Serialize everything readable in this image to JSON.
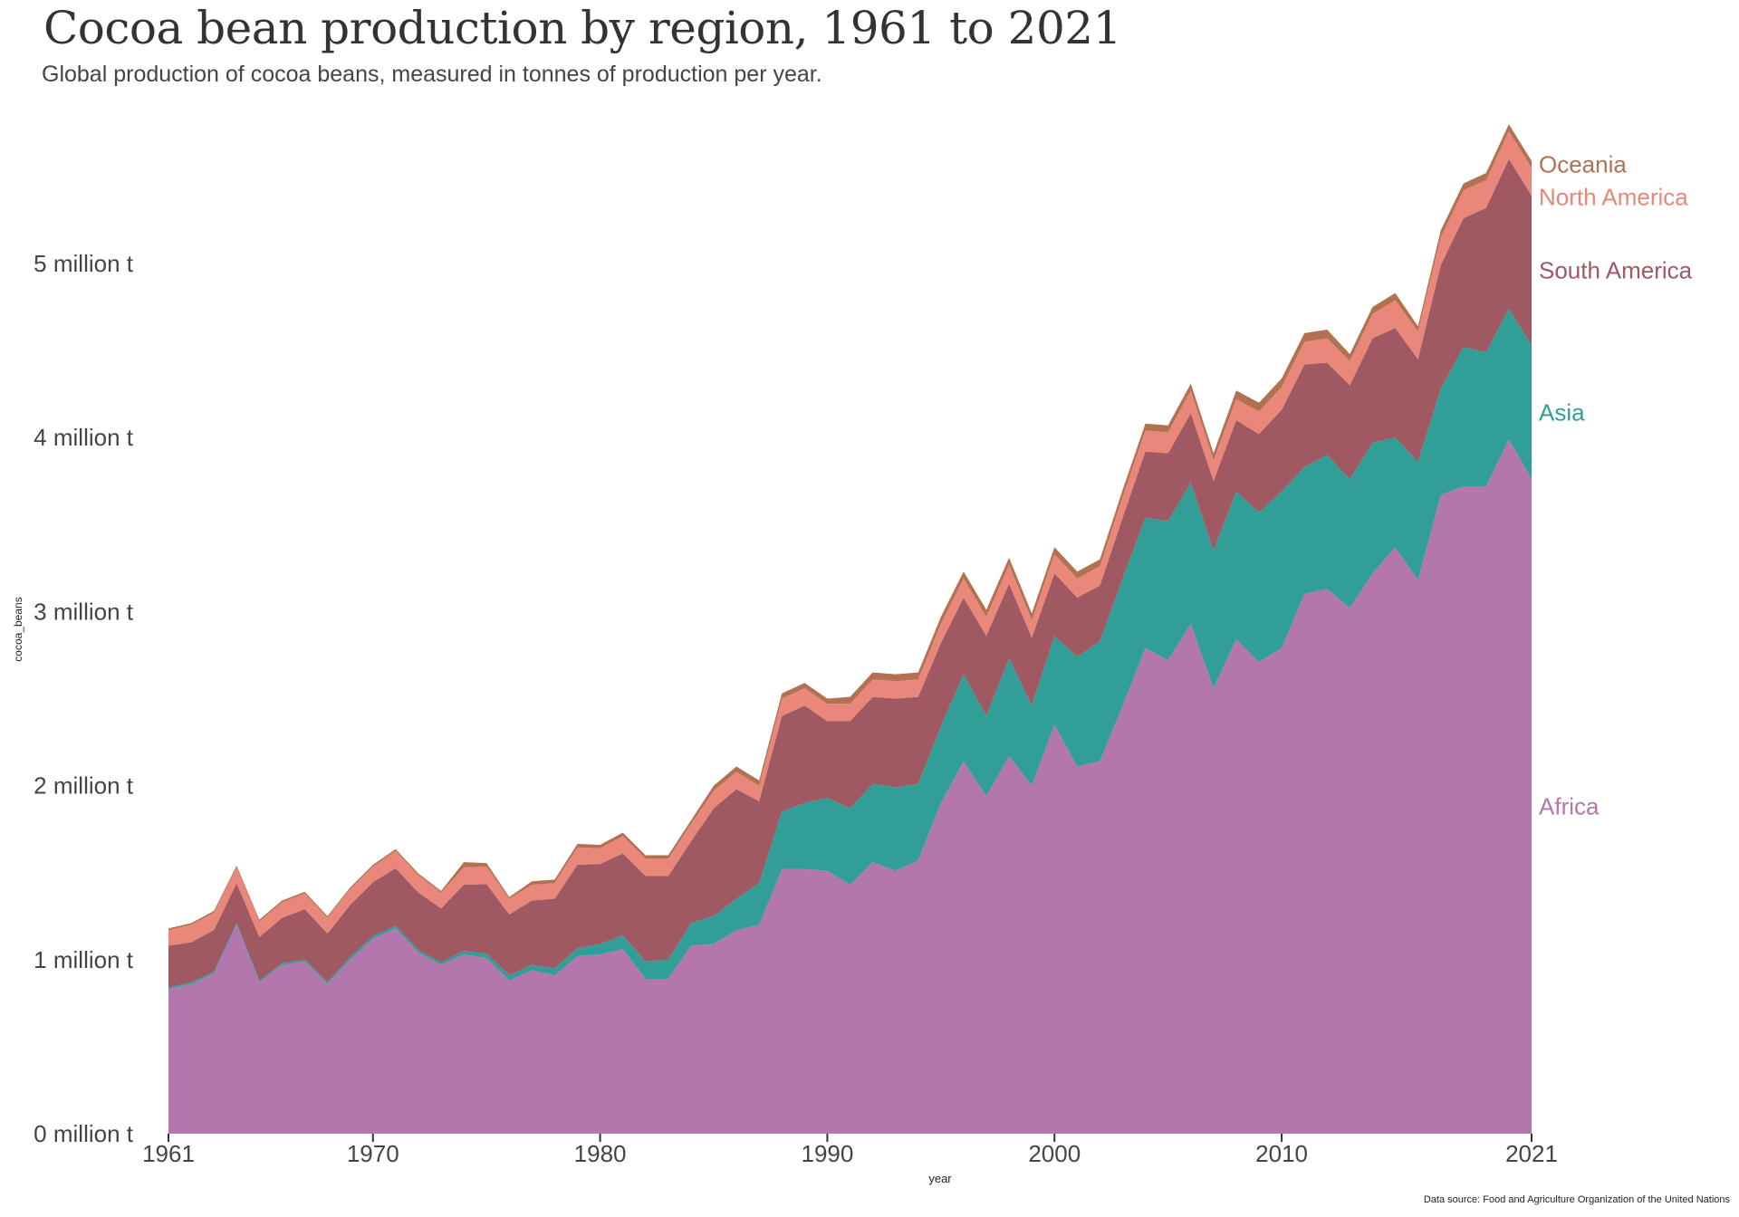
{
  "title": "Cocoa bean production by region, 1961 to 2021",
  "subtitle": "Global production of cocoa beans, measured in tonnes of production per year.",
  "source": "Data source: Food and Agriculture Organization of the United Nations",
  "chart_data": {
    "type": "area",
    "stacked": true,
    "xlabel": "year",
    "ylabel": "cocoa_beans",
    "xlim": [
      1961,
      2021
    ],
    "ylim": [
      0,
      5800000
    ],
    "x_ticks": [
      1961,
      1970,
      1980,
      1990,
      2000,
      2010,
      2021
    ],
    "y_ticks": [
      0,
      1000000,
      2000000,
      3000000,
      4000000,
      5000000
    ],
    "y_tick_labels": [
      "0 million t",
      "1 million t",
      "2 million t",
      "3 million t",
      "4 million t",
      "5 million t"
    ],
    "grid": false,
    "legend": "direct labels at right end",
    "x": [
      1961,
      1962,
      1963,
      1964,
      1965,
      1966,
      1967,
      1968,
      1969,
      1970,
      1971,
      1972,
      1973,
      1974,
      1975,
      1976,
      1977,
      1978,
      1979,
      1980,
      1981,
      1982,
      1983,
      1984,
      1985,
      1986,
      1987,
      1988,
      1989,
      1990,
      1991,
      1992,
      1993,
      1994,
      1995,
      1996,
      1997,
      1998,
      1999,
      2000,
      2001,
      2002,
      2003,
      2004,
      2005,
      2006,
      2007,
      2008,
      2009,
      2010,
      2011,
      2012,
      2013,
      2014,
      2015,
      2016,
      2017,
      2018,
      2019,
      2020,
      2021
    ],
    "series": [
      {
        "name": "Africa",
        "color": "#b377ae",
        "values": [
          830000,
          860000,
          920000,
          1200000,
          870000,
          970000,
          990000,
          860000,
          1000000,
          1120000,
          1180000,
          1040000,
          970000,
          1030000,
          1010000,
          880000,
          940000,
          910000,
          1020000,
          1030000,
          1060000,
          890000,
          890000,
          1080000,
          1090000,
          1170000,
          1200000,
          1520000,
          1520000,
          1510000,
          1430000,
          1560000,
          1510000,
          1570000,
          1900000,
          2140000,
          1940000,
          2170000,
          2000000,
          2350000,
          2110000,
          2140000,
          2460000,
          2790000,
          2720000,
          2930000,
          2560000,
          2840000,
          2710000,
          2790000,
          3100000,
          3130000,
          3020000,
          3220000,
          3370000,
          3180000,
          3670000,
          3720000,
          3720000,
          3990000,
          3760000
        ]
      },
      {
        "name": "Asia",
        "color": "#319e98",
        "values": [
          10000,
          10000,
          10000,
          10000,
          10000,
          10000,
          10000,
          10000,
          15000,
          15000,
          15000,
          15000,
          15000,
          20000,
          25000,
          30000,
          30000,
          40000,
          45000,
          60000,
          80000,
          100000,
          110000,
          130000,
          160000,
          180000,
          240000,
          330000,
          380000,
          420000,
          440000,
          450000,
          480000,
          440000,
          440000,
          500000,
          460000,
          560000,
          460000,
          510000,
          630000,
          690000,
          730000,
          750000,
          800000,
          810000,
          790000,
          850000,
          860000,
          900000,
          730000,
          770000,
          740000,
          750000,
          630000,
          680000,
          610000,
          800000,
          770000,
          750000,
          770000
        ]
      },
      {
        "name": "South America",
        "color": "#a05862",
        "values": [
          240000,
          230000,
          240000,
          230000,
          250000,
          260000,
          290000,
          280000,
          300000,
          310000,
          330000,
          330000,
          310000,
          380000,
          400000,
          350000,
          370000,
          400000,
          480000,
          460000,
          470000,
          490000,
          480000,
          470000,
          620000,
          630000,
          470000,
          550000,
          560000,
          440000,
          500000,
          500000,
          510000,
          500000,
          480000,
          440000,
          460000,
          430000,
          390000,
          360000,
          340000,
          320000,
          350000,
          380000,
          390000,
          400000,
          400000,
          410000,
          450000,
          470000,
          590000,
          530000,
          540000,
          600000,
          630000,
          590000,
          710000,
          740000,
          830000,
          860000,
          860000
        ]
      },
      {
        "name": "North America",
        "color": "#e8877a",
        "values": [
          90000,
          100000,
          100000,
          90000,
          90000,
          90000,
          90000,
          90000,
          90000,
          90000,
          100000,
          100000,
          90000,
          100000,
          100000,
          90000,
          90000,
          90000,
          100000,
          90000,
          100000,
          100000,
          100000,
          100000,
          100000,
          100000,
          90000,
          100000,
          100000,
          100000,
          100000,
          100000,
          100000,
          100000,
          110000,
          110000,
          110000,
          110000,
          100000,
          110000,
          110000,
          110000,
          120000,
          120000,
          120000,
          130000,
          120000,
          120000,
          130000,
          130000,
          130000,
          140000,
          140000,
          140000,
          160000,
          160000,
          160000,
          160000,
          160000,
          160000,
          160000
        ]
      },
      {
        "name": "Oceania",
        "color": "#b27150",
        "values": [
          10000,
          10000,
          10000,
          10000,
          10000,
          10000,
          10000,
          10000,
          10000,
          10000,
          10000,
          10000,
          10000,
          30000,
          20000,
          10000,
          20000,
          20000,
          20000,
          20000,
          20000,
          20000,
          20000,
          20000,
          30000,
          30000,
          30000,
          30000,
          30000,
          30000,
          40000,
          40000,
          40000,
          40000,
          40000,
          40000,
          40000,
          40000,
          40000,
          40000,
          40000,
          40000,
          40000,
          40000,
          40000,
          40000,
          40000,
          50000,
          50000,
          50000,
          50000,
          50000,
          40000,
          40000,
          40000,
          30000,
          40000,
          40000,
          40000,
          40000,
          40000
        ]
      }
    ]
  }
}
